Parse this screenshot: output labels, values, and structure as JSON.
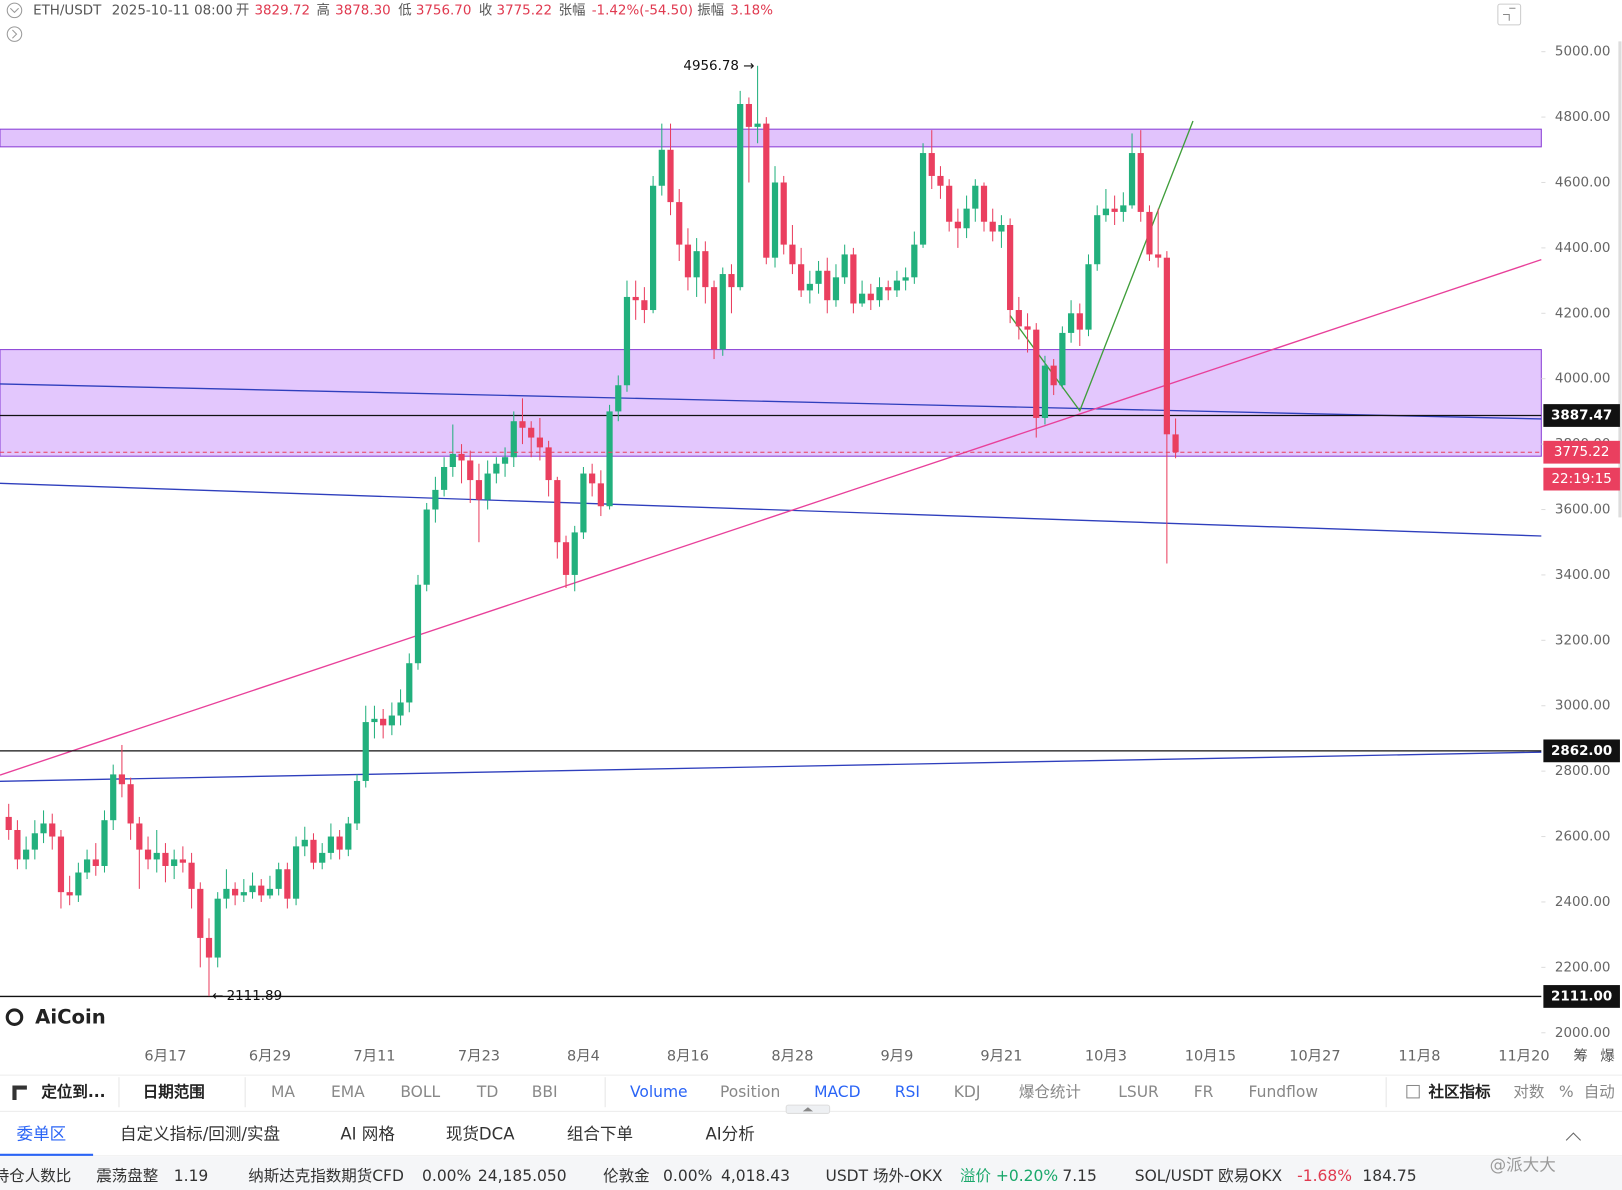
{
  "chart_data": {
    "type": "candlestick",
    "x": [
      -18,
      -17,
      -16,
      -15,
      -14,
      -13,
      -12,
      -11,
      -10,
      -9,
      -8,
      -7,
      -6,
      -5,
      -4,
      -3,
      -2,
      -1,
      0,
      1,
      2,
      3,
      4,
      5,
      6,
      7,
      8,
      9,
      10,
      11,
      12,
      13,
      14,
      15,
      16,
      17,
      18,
      19,
      20,
      21,
      22,
      23,
      24,
      25,
      26,
      27,
      28,
      29,
      30,
      31,
      32,
      33,
      34,
      35,
      36,
      37,
      38,
      39,
      40,
      41,
      42,
      43,
      44,
      45,
      46,
      47,
      48,
      49,
      50,
      51,
      52,
      53,
      54,
      55,
      56,
      57,
      58,
      59,
      60,
      61,
      62,
      63,
      64,
      65,
      66,
      67,
      68,
      69,
      70,
      71,
      72,
      73,
      74,
      75,
      76,
      77,
      78,
      79,
      80,
      81,
      82,
      83,
      84,
      85,
      86,
      87,
      88,
      89,
      90,
      91,
      92,
      93,
      94,
      95,
      96,
      97,
      98,
      99,
      100,
      101,
      102,
      103,
      104,
      105,
      106,
      107,
      108,
      109,
      110,
      111,
      112,
      113,
      114,
      115,
      116
    ],
    "open": [
      2660,
      2620,
      2530,
      2560,
      2610,
      2640,
      2600,
      2430,
      2420,
      2490,
      2530,
      2510,
      2650,
      2790,
      2760,
      2640,
      2560,
      2530,
      2550,
      2510,
      2530,
      2520,
      2440,
      2290,
      2230,
      2410,
      2440,
      2420,
      2430,
      2450,
      2420,
      2440,
      2500,
      2410,
      2570,
      2590,
      2520,
      2550,
      2600,
      2560,
      2640,
      2770,
      2950,
      2960,
      2940,
      2970,
      3010,
      3130,
      3370,
      3600,
      3660,
      3730,
      3770,
      3750,
      3690,
      3630,
      3710,
      3740,
      3760,
      3870,
      3850,
      3820,
      3790,
      3690,
      3500,
      3400,
      3530,
      3710,
      3680,
      3610,
      3900,
      3980,
      4250,
      4240,
      4210,
      4590,
      4700,
      4540,
      4410,
      4310,
      4390,
      4280,
      4090,
      4320,
      4280,
      4840,
      4770,
      4780,
      4370,
      4600,
      4410,
      4350,
      4270,
      4290,
      4330,
      4240,
      4310,
      4380,
      4230,
      4260,
      4240,
      4280,
      4270,
      4300,
      4310,
      4410,
      4690,
      4620,
      4590,
      4480,
      4460,
      4520,
      4590,
      4480,
      4450,
      4470,
      4210,
      4160,
      4150,
      3880,
      4040,
      3980,
      4140,
      4200,
      4150,
      4350,
      4500,
      4520,
      4510,
      4530,
      4690,
      4510,
      4380,
      4370,
      3829.72
    ],
    "high": [
      2700,
      2650,
      2600,
      2650,
      2680,
      2670,
      2620,
      2480,
      2520,
      2560,
      2580,
      2680,
      2820,
      2880,
      2780,
      2660,
      2600,
      2620,
      2580,
      2560,
      2570,
      2550,
      2460,
      2350,
      2430,
      2500,
      2460,
      2470,
      2490,
      2470,
      2480,
      2520,
      2520,
      2600,
      2630,
      2610,
      2580,
      2640,
      2620,
      2660,
      2790,
      3000,
      3000,
      2990,
      3010,
      3050,
      3160,
      3400,
      3620,
      3700,
      3760,
      3860,
      3800,
      3780,
      3740,
      3750,
      3760,
      3790,
      3900,
      3940,
      3870,
      3880,
      3810,
      3700,
      3520,
      3550,
      3730,
      3740,
      3720,
      3920,
      4010,
      4300,
      4300,
      4280,
      4620,
      4780,
      4780,
      4580,
      4460,
      4430,
      4420,
      4300,
      4340,
      4350,
      4880,
      4860,
      4956.78,
      4800,
      4650,
      4620,
      4470,
      4400,
      4330,
      4360,
      4370,
      4350,
      4410,
      4400,
      4300,
      4290,
      4310,
      4300,
      4330,
      4340,
      4450,
      4720,
      4760,
      4650,
      4610,
      4520,
      4560,
      4610,
      4600,
      4520,
      4500,
      4490,
      4250,
      4200,
      4170,
      4070,
      4060,
      4160,
      4240,
      4230,
      4380,
      4530,
      4580,
      4560,
      4570,
      4750,
      4760,
      4530,
      4520,
      4390,
      3878.3
    ],
    "low": [
      2590,
      2500,
      2500,
      2530,
      2580,
      2560,
      2380,
      2390,
      2400,
      2470,
      2480,
      2490,
      2620,
      2720,
      2590,
      2440,
      2500,
      2490,
      2460,
      2470,
      2490,
      2380,
      2200,
      2111.89,
      2200,
      2380,
      2390,
      2400,
      2410,
      2400,
      2410,
      2420,
      2380,
      2390,
      2540,
      2500,
      2500,
      2530,
      2530,
      2540,
      2620,
      2750,
      2900,
      2900,
      2910,
      2940,
      2980,
      3110,
      3350,
      3560,
      3640,
      3700,
      3680,
      3620,
      3500,
      3600,
      3680,
      3700,
      3730,
      3800,
      3760,
      3750,
      3640,
      3450,
      3360,
      3350,
      3510,
      3640,
      3580,
      3600,
      3870,
      3960,
      4180,
      4170,
      4200,
      4560,
      4500,
      4360,
      4270,
      4250,
      4230,
      4060,
      4070,
      4200,
      4270,
      4600,
      4720,
      4350,
      4340,
      4380,
      4320,
      4250,
      4230,
      4260,
      4200,
      4220,
      4290,
      4200,
      4220,
      4210,
      4220,
      4240,
      4250,
      4270,
      4290,
      4400,
      4580,
      4550,
      4450,
      4400,
      4430,
      4480,
      4450,
      4420,
      4400,
      4170,
      4120,
      4080,
      3820,
      3860,
      3950,
      3970,
      4110,
      4100,
      4130,
      4330,
      4480,
      4470,
      4480,
      4520,
      4480,
      4360,
      4340,
      3435,
      3756.7
    ],
    "close": [
      2620,
      2530,
      2560,
      2610,
      2640,
      2600,
      2430,
      2420,
      2490,
      2530,
      2510,
      2650,
      2790,
      2760,
      2640,
      2560,
      2530,
      2550,
      2510,
      2530,
      2520,
      2440,
      2290,
      2230,
      2410,
      2440,
      2420,
      2430,
      2450,
      2420,
      2440,
      2500,
      2410,
      2570,
      2590,
      2520,
      2550,
      2600,
      2560,
      2640,
      2770,
      2950,
      2960,
      2940,
      2970,
      3010,
      3130,
      3370,
      3600,
      3660,
      3730,
      3770,
      3750,
      3690,
      3630,
      3710,
      3740,
      3760,
      3870,
      3850,
      3820,
      3790,
      3690,
      3500,
      3400,
      3530,
      3710,
      3680,
      3610,
      3900,
      3980,
      4250,
      4240,
      4210,
      4590,
      4700,
      4540,
      4410,
      4310,
      4390,
      4280,
      4090,
      4320,
      4280,
      4840,
      4770,
      4780,
      4370,
      4600,
      4410,
      4350,
      4270,
      4290,
      4330,
      4240,
      4310,
      4380,
      4230,
      4260,
      4240,
      4280,
      4270,
      4300,
      4310,
      4410,
      4690,
      4620,
      4590,
      4480,
      4460,
      4520,
      4590,
      4480,
      4450,
      4470,
      4210,
      4160,
      4150,
      3880,
      4040,
      3980,
      4140,
      4200,
      4150,
      4350,
      4500,
      4520,
      4510,
      4530,
      4690,
      4510,
      4380,
      4370,
      3830,
      3775.22
    ],
    "up_color": "#22b07d",
    "down_color": "#ea3f5f",
    "xlim": [
      -19,
      158
    ],
    "xticks": [
      {
        "value": 0,
        "label": "6月17"
      },
      {
        "value": 12,
        "label": "6月29"
      },
      {
        "value": 24,
        "label": "7月11"
      },
      {
        "value": 36,
        "label": "7月23"
      },
      {
        "value": 48,
        "label": "8月4"
      },
      {
        "value": 60,
        "label": "8月16"
      },
      {
        "value": 72,
        "label": "8月28"
      },
      {
        "value": 84,
        "label": "9月9"
      },
      {
        "value": 96,
        "label": "9月21"
      },
      {
        "value": 108,
        "label": "10月3"
      },
      {
        "value": 120,
        "label": "10月15"
      },
      {
        "value": 132,
        "label": "10月27"
      },
      {
        "value": 144,
        "label": "11月8"
      },
      {
        "value": 156,
        "label": "11月20"
      }
    ],
    "ylim": [
      1978,
      5158
    ],
    "yticks": [
      {
        "value": 2000,
        "label": "2000.00"
      },
      {
        "value": 2200,
        "label": "2200.00"
      },
      {
        "value": 2400,
        "label": "2400.00"
      },
      {
        "value": 2600,
        "label": "2600.00"
      },
      {
        "value": 2800,
        "label": "2800.00"
      },
      {
        "value": 3000,
        "label": "3000.00"
      },
      {
        "value": 3200,
        "label": "3200.00"
      },
      {
        "value": 3400,
        "label": "3400.00"
      },
      {
        "value": 3600,
        "label": "3600.00"
      },
      {
        "value": 3800,
        "label": "3800.00"
      },
      {
        "value": 4000,
        "label": "4000.00"
      },
      {
        "value": 4200,
        "label": "4200.00"
      },
      {
        "value": 4400,
        "label": "4400.00"
      },
      {
        "value": 4600,
        "label": "4600.00"
      },
      {
        "value": 4800,
        "label": "4800.00"
      },
      {
        "value": 5000,
        "label": "5000.00"
      }
    ],
    "grid": false,
    "zones": [
      {
        "top": 4763,
        "bottom": 4709,
        "color": "#d9b4fb",
        "border": "#8a3fd6"
      },
      {
        "top": 4089,
        "bottom": 3763,
        "color": "#dcb9fc",
        "border": "#8a3fd6"
      }
    ],
    "hlines": [
      {
        "value": 3887.47
      },
      {
        "value": 2862,
        "label": "2862.00"
      },
      {
        "value": 2111,
        "label": "2111.00"
      }
    ],
    "trendlines": [
      {
        "color": "#2f3fbd",
        "points": [
          [
            -19,
            3984
          ],
          [
            158,
            3877
          ]
        ]
      },
      {
        "color": "#2f3fbd",
        "points": [
          [
            -19,
            3680
          ],
          [
            158,
            3519
          ]
        ]
      },
      {
        "color": "#2f3fbd",
        "points": [
          [
            -19,
            2769
          ],
          [
            158,
            2858
          ]
        ]
      },
      {
        "color": "#e8409a",
        "points": [
          [
            -19,
            2788
          ],
          [
            158,
            4364
          ]
        ]
      },
      {
        "color": "#3f9e3a",
        "points": [
          [
            97,
            4193
          ],
          [
            105,
            3902
          ],
          [
            118,
            4788
          ]
        ]
      }
    ],
    "countdown": "22:19:15",
    "axis_extra": [
      "筹",
      "爆"
    ]
  },
  "header": {
    "symbol": "ETH/USDT",
    "time": "2025-10-11 08:00",
    "fields": [
      [
        "开",
        "3829.72"
      ],
      [
        "高",
        "3878.30"
      ],
      [
        "低",
        "3756.70"
      ],
      [
        "收",
        "3775.22"
      ],
      [
        "张幅",
        "-1.42%(-54.50)"
      ],
      [
        "振幅",
        "3.18%"
      ]
    ]
  },
  "logo": "AiCoin",
  "toolbar": [
    "定位到...",
    "日期范围",
    "MA",
    "EMA",
    "BOLL",
    "TD",
    "BBI",
    "Volume",
    "Position",
    "MACD",
    "RSI",
    "KDJ",
    "爆仓统计",
    "LSUR",
    "FR",
    "Fundflow",
    "社区指标",
    "对数",
    "%",
    "自动"
  ],
  "tabs": [
    "委单区",
    "自定义指标/回测/实盘",
    "AI 网格",
    "现货DCA",
    "组合下单",
    "AI分析"
  ],
  "ticker": [
    [
      "持仓人数比",
      "震荡盘整",
      "1.19"
    ],
    [
      "纳斯达克指数期货CFD",
      "0.00%",
      "24,185.050"
    ],
    [
      "伦敦金",
      "0.00%",
      "4,018.43"
    ],
    [
      "USDT 场外-OKX",
      "溢价 +0.20%",
      "7.15"
    ],
    [
      "SOL/USDT 欧易OKX",
      "-1.68%",
      "184.75"
    ]
  ],
  "watermark": "@派大大"
}
